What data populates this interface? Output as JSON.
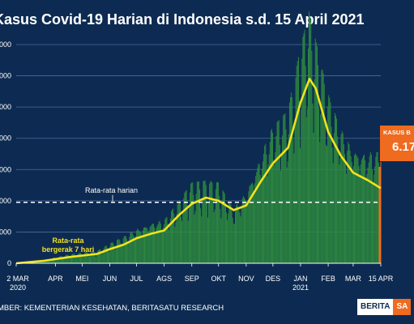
{
  "header": {
    "title": "Kasus Covid-19 Harian di Indonesia s.d. 15 April 2021"
  },
  "footer": {
    "source": "MBER: KEMENTERIAN KESEHATAN, BERITASATU RESEARCH",
    "logo_left": "BERITA",
    "logo_right": "SA"
  },
  "callout": {
    "label": "KASUS B",
    "value": "6.17"
  },
  "colors": {
    "background": "#0d2b52",
    "bars": "#2e8b3e",
    "moving_average": "#f3e21c",
    "callout": "#ef6b1f",
    "grid": "#4a6a9a"
  },
  "chart_data": {
    "type": "bar",
    "ylim": [
      0,
      14000
    ],
    "yticks": [
      0,
      2000,
      4000,
      6000,
      8000,
      10000,
      12000,
      14000
    ],
    "ytick_labels": [
      "0",
      "000",
      "000",
      "000",
      "000",
      "000",
      "000",
      "000"
    ],
    "xlim": [
      "2020-03-02",
      "2021-04-15"
    ],
    "xticks": [
      {
        "date": "2020-03-02",
        "label": "2 MAR",
        "sub": "2020"
      },
      {
        "date": "2020-04-15",
        "label": "APR",
        "sub": ""
      },
      {
        "date": "2020-05-15",
        "label": "MEI",
        "sub": ""
      },
      {
        "date": "2020-06-15",
        "label": "JUN",
        "sub": ""
      },
      {
        "date": "2020-07-15",
        "label": "JUL",
        "sub": ""
      },
      {
        "date": "2020-08-15",
        "label": "AGS",
        "sub": ""
      },
      {
        "date": "2020-09-15",
        "label": "SEP",
        "sub": ""
      },
      {
        "date": "2020-10-15",
        "label": "OKT",
        "sub": ""
      },
      {
        "date": "2020-11-15",
        "label": "NOV",
        "sub": ""
      },
      {
        "date": "2020-12-15",
        "label": "DES",
        "sub": ""
      },
      {
        "date": "2021-01-15",
        "label": "JAN",
        "sub": "2021"
      },
      {
        "date": "2021-02-15",
        "label": "FEB",
        "sub": ""
      },
      {
        "date": "2021-03-15",
        "label": "MAR",
        "sub": ""
      },
      {
        "date": "2021-04-15",
        "label": "15 APR",
        "sub": ""
      }
    ],
    "series": [
      {
        "name": "Rata-rata bergerak 7 hari",
        "style": "line",
        "x": [
          "2020-03-02",
          "2020-04-01",
          "2020-05-01",
          "2020-06-01",
          "2020-06-15",
          "2020-07-01",
          "2020-07-15",
          "2020-08-01",
          "2020-08-15",
          "2020-09-01",
          "2020-09-15",
          "2020-10-01",
          "2020-10-15",
          "2020-11-01",
          "2020-11-15",
          "2020-12-01",
          "2020-12-15",
          "2021-01-01",
          "2021-01-15",
          "2021-01-25",
          "2021-02-01",
          "2021-02-15",
          "2021-03-01",
          "2021-03-15",
          "2021-04-01",
          "2021-04-15"
        ],
        "values": [
          0,
          150,
          400,
          600,
          900,
          1200,
          1600,
          1900,
          2100,
          3100,
          3800,
          4200,
          4000,
          3400,
          3700,
          5200,
          6400,
          7400,
          10300,
          11800,
          11200,
          8400,
          6900,
          5800,
          5300,
          4800
        ]
      }
    ],
    "bars_x": [
      "2020-03-02",
      "2020-04-01",
      "2020-05-01",
      "2020-06-01",
      "2020-06-15",
      "2020-07-01",
      "2020-07-15",
      "2020-08-01",
      "2020-08-15",
      "2020-09-01",
      "2020-09-15",
      "2020-10-01",
      "2020-10-15",
      "2020-11-01",
      "2020-11-15",
      "2020-12-01",
      "2020-12-15",
      "2021-01-01",
      "2021-01-15",
      "2021-01-25",
      "2021-02-01",
      "2021-02-15",
      "2021-03-01",
      "2021-03-15",
      "2021-04-01",
      "2021-04-15"
    ],
    "bars_values": [
      0,
      200,
      500,
      700,
      1100,
      1500,
      1900,
      2300,
      2400,
      3500,
      4500,
      4600,
      4500,
      3000,
      4000,
      6000,
      7600,
      8500,
      12000,
      14000,
      12500,
      9500,
      7500,
      6500,
      6200,
      6177
    ],
    "last_value": 6177,
    "average_line": {
      "label": "Rata-rata harian",
      "value": 3900
    },
    "annotations": [
      {
        "text": "Rata-rata",
        "at": "2020-05-01"
      },
      {
        "text": "bergerak 7 hari",
        "at": "2020-05-01"
      }
    ]
  }
}
